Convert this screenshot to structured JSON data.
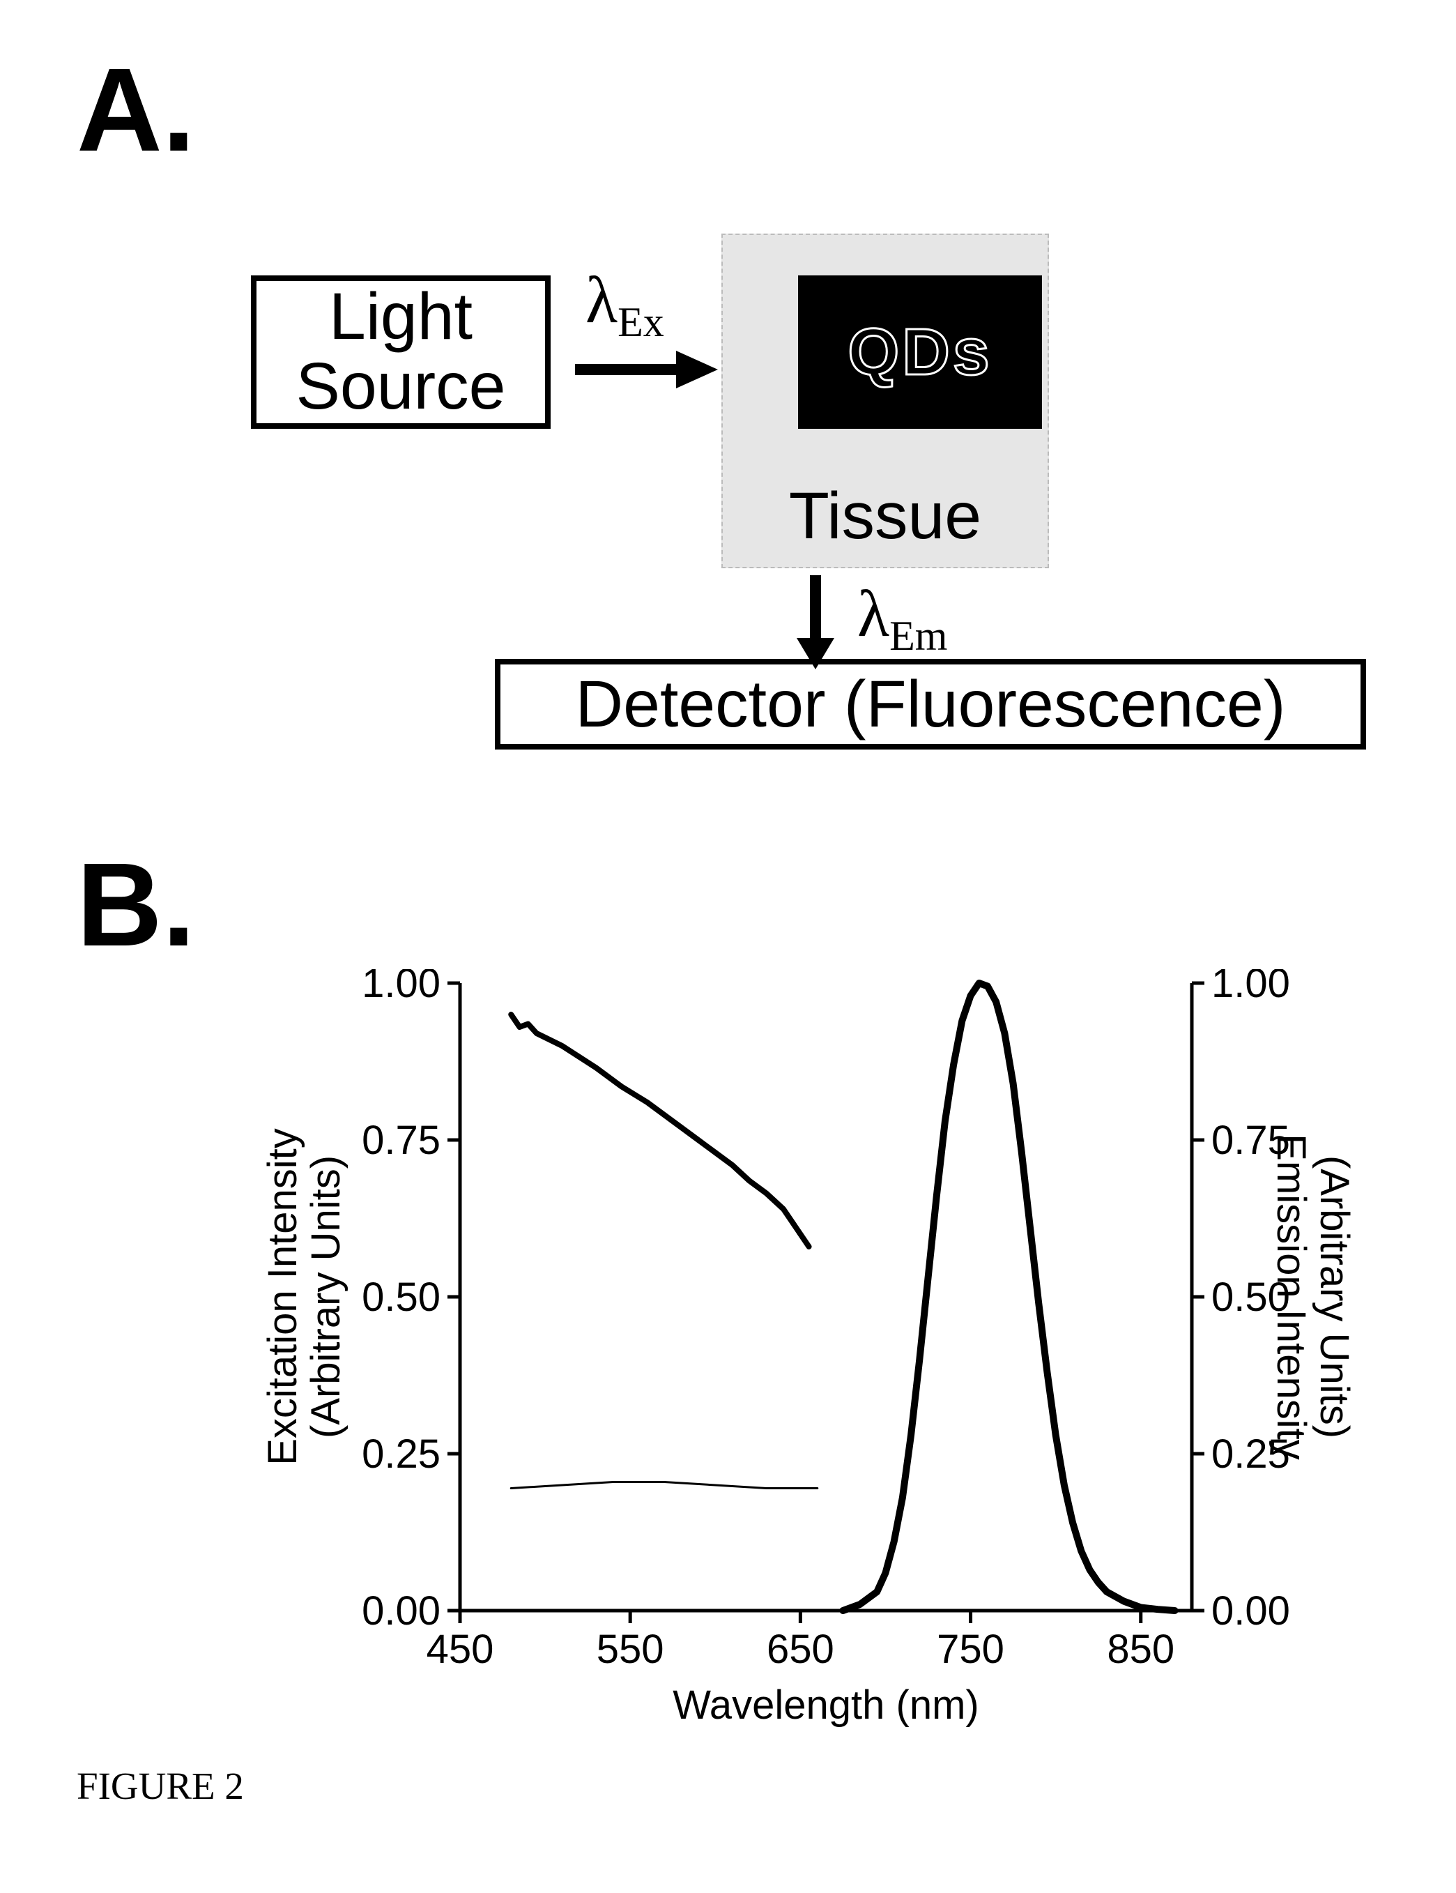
{
  "panelA": {
    "letter": "A.",
    "lightSource": "Light\nSource",
    "lambdaEx_html": "λ<sub class='sub'>Ex</sub>",
    "lambdaEm_html": "λ<sub class='sub'>Em</sub>",
    "qds": "QDs",
    "tissue": "Tissue",
    "detector": "Detector (Fluorescence)"
  },
  "panelB": {
    "letter": "B.",
    "chart": {
      "type": "line",
      "xlim": [
        450,
        880
      ],
      "ylim": [
        0.0,
        1.0
      ],
      "xticks": [
        450,
        550,
        650,
        750,
        850
      ],
      "yticks": [
        0.0,
        0.25,
        0.5,
        0.75,
        1.0
      ],
      "xlabel": "Wavelength (nm)",
      "ylabel_left": "Excitation Intensity\n(Arbitrary Units)",
      "ylabel_right": "Emission Intensity\n(Arbitrary Units)",
      "label_fontsize": 58,
      "tick_fontsize": 58,
      "axis_linewidth": 5,
      "background_color": "#ffffff",
      "series": [
        {
          "name": "excitation_bold",
          "color": "#000000",
          "linewidth": 8,
          "axis": "left",
          "data": [
            [
              480,
              0.95
            ],
            [
              485,
              0.93
            ],
            [
              490,
              0.935
            ],
            [
              495,
              0.92
            ],
            [
              510,
              0.9
            ],
            [
              530,
              0.865
            ],
            [
              545,
              0.835
            ],
            [
              560,
              0.81
            ],
            [
              575,
              0.78
            ],
            [
              590,
              0.75
            ],
            [
              600,
              0.73
            ],
            [
              610,
              0.71
            ],
            [
              620,
              0.685
            ],
            [
              630,
              0.665
            ],
            [
              640,
              0.64
            ],
            [
              650,
              0.6
            ],
            [
              655,
              0.58
            ]
          ]
        },
        {
          "name": "excitation_thin",
          "color": "#000000",
          "linewidth": 3,
          "axis": "left",
          "data": [
            [
              480,
              0.195
            ],
            [
              510,
              0.2
            ],
            [
              540,
              0.205
            ],
            [
              570,
              0.205
            ],
            [
              600,
              0.2
            ],
            [
              630,
              0.195
            ],
            [
              660,
              0.195
            ]
          ]
        },
        {
          "name": "emission_peak",
          "color": "#000000",
          "linewidth": 10,
          "axis": "right",
          "data": [
            [
              675,
              0.0
            ],
            [
              685,
              0.01
            ],
            [
              695,
              0.03
            ],
            [
              700,
              0.06
            ],
            [
              705,
              0.11
            ],
            [
              710,
              0.18
            ],
            [
              715,
              0.28
            ],
            [
              720,
              0.4
            ],
            [
              725,
              0.53
            ],
            [
              730,
              0.66
            ],
            [
              735,
              0.78
            ],
            [
              740,
              0.87
            ],
            [
              745,
              0.94
            ],
            [
              750,
              0.98
            ],
            [
              755,
              1.0
            ],
            [
              760,
              0.995
            ],
            [
              765,
              0.97
            ],
            [
              770,
              0.92
            ],
            [
              775,
              0.84
            ],
            [
              780,
              0.73
            ],
            [
              785,
              0.61
            ],
            [
              790,
              0.49
            ],
            [
              795,
              0.38
            ],
            [
              800,
              0.28
            ],
            [
              805,
              0.2
            ],
            [
              810,
              0.14
            ],
            [
              815,
              0.095
            ],
            [
              820,
              0.065
            ],
            [
              825,
              0.045
            ],
            [
              830,
              0.03
            ],
            [
              840,
              0.015
            ],
            [
              850,
              0.005
            ],
            [
              860,
              0.002
            ],
            [
              870,
              0.0
            ]
          ]
        }
      ]
    }
  },
  "figureCaption": "FIGURE 2"
}
